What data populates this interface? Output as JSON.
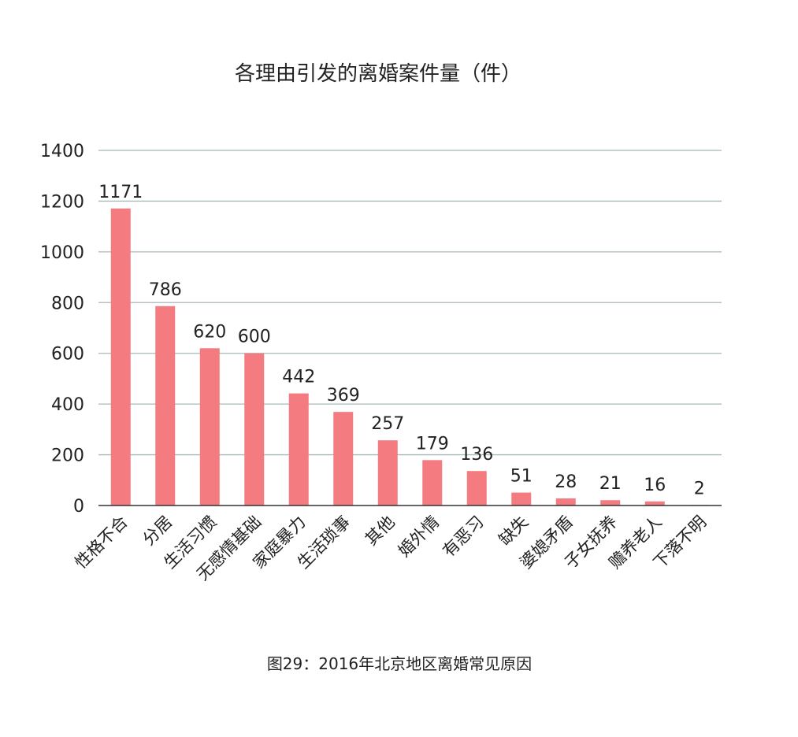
{
  "chart_data": {
    "type": "bar",
    "title": "各理由引发的离婚案件量（件）",
    "caption": "图29：2016年北京地区离婚常见原因",
    "categories": [
      "性格不合",
      "分居",
      "生活习惯",
      "无感情基础",
      "家庭暴力",
      "生活琐事",
      "其他",
      "婚外情",
      "有恶习",
      "缺失",
      "婆媳矛盾",
      "子女抚养",
      "赡养老人",
      "下落不明"
    ],
    "values": [
      1171,
      786,
      620,
      600,
      442,
      369,
      257,
      179,
      136,
      51,
      28,
      21,
      16,
      2
    ],
    "value_labels": [
      "1171",
      "786",
      "620",
      "600",
      "442",
      "369",
      "257",
      "179",
      "136",
      "51",
      "28",
      "21",
      "16",
      "2"
    ],
    "ylim": [
      0,
      1400
    ],
    "yticks": [
      0,
      200,
      400,
      600,
      800,
      1000,
      1200,
      1400
    ],
    "ytick_labels": [
      "0",
      "200",
      "400",
      "600",
      "800",
      "1000",
      "1200",
      "1400"
    ],
    "grid": true,
    "bar_color": "#f47b7f",
    "grid_color": "#a9b8b8",
    "axis_color": "#333333"
  }
}
